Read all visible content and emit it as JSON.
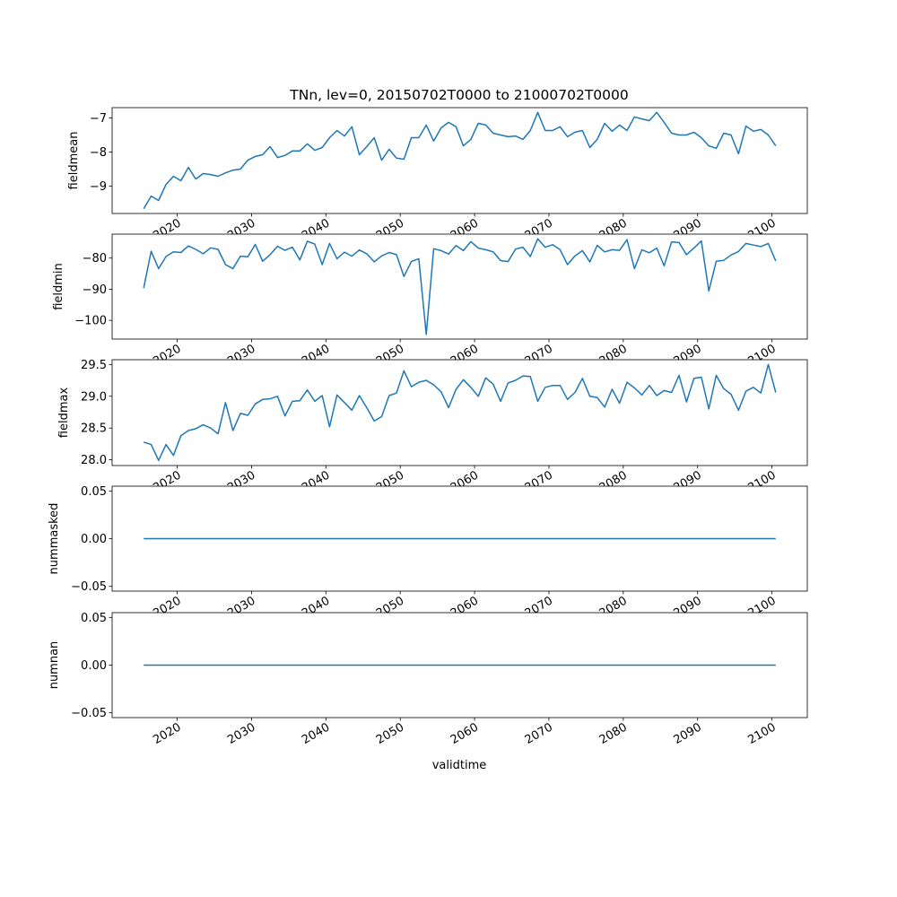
{
  "chart_data": {
    "type": "line",
    "title": "TNn, lev=0, 20150702T0000 to 21000702T0000",
    "xlabel": "validtime",
    "x_start": 2015.5,
    "x_step": 1,
    "xlim": [
      2011.25,
      2104.75
    ],
    "x_ticks": [
      2020,
      2030,
      2040,
      2050,
      2060,
      2070,
      2080,
      2090,
      2100
    ],
    "x_tick_labels": [
      "2020",
      "2030",
      "2040",
      "2050",
      "2060",
      "2070",
      "2080",
      "2090",
      "2100"
    ],
    "line_color": "#1f77b4",
    "grid": false,
    "panels": [
      {
        "ylabel": "fieldmean",
        "ylim": [
          -9.8,
          -6.7
        ],
        "y_ticks": [
          -9,
          -8,
          -7
        ],
        "y_tick_labels": [
          "−9",
          "−8",
          "−7"
        ],
        "values": [
          -9.66,
          -9.29,
          -9.42,
          -8.95,
          -8.71,
          -8.84,
          -8.45,
          -8.79,
          -8.63,
          -8.66,
          -8.71,
          -8.61,
          -8.53,
          -8.5,
          -8.24,
          -8.13,
          -8.08,
          -7.84,
          -8.16,
          -8.1,
          -7.97,
          -7.97,
          -7.76,
          -7.95,
          -7.87,
          -7.58,
          -7.37,
          -7.53,
          -7.26,
          -8.08,
          -7.84,
          -7.58,
          -8.24,
          -7.92,
          -8.18,
          -8.21,
          -7.58,
          -7.58,
          -7.21,
          -7.68,
          -7.29,
          -7.13,
          -7.26,
          -7.82,
          -7.63,
          -7.16,
          -7.21,
          -7.45,
          -7.5,
          -7.55,
          -7.53,
          -7.63,
          -7.37,
          -6.84,
          -7.37,
          -7.37,
          -7.26,
          -7.55,
          -7.42,
          -7.37,
          -7.87,
          -7.63,
          -7.16,
          -7.39,
          -7.21,
          -7.37,
          -6.97,
          -7.03,
          -7.08,
          -6.84,
          -7.13,
          -7.45,
          -7.5,
          -7.5,
          -7.42,
          -7.58,
          -7.82,
          -7.89,
          -7.45,
          -7.5,
          -8.05,
          -7.24,
          -7.39,
          -7.34,
          -7.5,
          -7.82
        ]
      },
      {
        "ylabel": "fieldmin",
        "ylim": [
          -106.0,
          -72.3
        ],
        "y_ticks": [
          -100,
          -90,
          -80
        ],
        "y_tick_labels": [
          "−100",
          "−90",
          "−80"
        ],
        "values": [
          -89.6,
          -77.8,
          -83.4,
          -79.5,
          -78.0,
          -78.2,
          -76.1,
          -77.2,
          -78.6,
          -76.7,
          -77.2,
          -82.1,
          -83.4,
          -79.4,
          -79.6,
          -75.6,
          -81.0,
          -78.9,
          -76.2,
          -77.5,
          -76.5,
          -80.6,
          -74.6,
          -75.5,
          -82.1,
          -75.3,
          -80.2,
          -78.1,
          -79.4,
          -77.4,
          -78.6,
          -81.2,
          -79.3,
          -78.2,
          -78.9,
          -85.9,
          -81.1,
          -80.2,
          -104.5,
          -77.0,
          -77.6,
          -78.7,
          -76.0,
          -77.6,
          -74.7,
          -76.8,
          -77.3,
          -78.0,
          -80.8,
          -81.1,
          -77.1,
          -76.5,
          -79.5,
          -73.8,
          -76.5,
          -75.7,
          -77.3,
          -82.1,
          -79.3,
          -77.6,
          -81.2,
          -75.9,
          -78.0,
          -77.3,
          -77.5,
          -74.1,
          -83.4,
          -77.3,
          -78.3,
          -76.8,
          -82.5,
          -74.8,
          -75.0,
          -78.9,
          -76.8,
          -74.5,
          -90.6,
          -81.0,
          -80.7,
          -79.0,
          -77.9,
          -75.3,
          -75.8,
          -76.3,
          -75.3,
          -80.9
        ]
      },
      {
        "ylabel": "fieldmax",
        "ylim": [
          27.91,
          29.575
        ],
        "y_ticks": [
          28.0,
          28.5,
          29.0,
          29.5
        ],
        "y_tick_labels": [
          "28.0",
          "28.5",
          "29.0",
          "29.5"
        ],
        "values": [
          28.28,
          28.24,
          27.99,
          28.24,
          28.07,
          28.38,
          28.46,
          28.49,
          28.55,
          28.5,
          28.41,
          28.9,
          28.46,
          28.73,
          28.7,
          28.88,
          28.95,
          28.96,
          29.0,
          28.69,
          28.92,
          28.93,
          29.1,
          28.92,
          29.01,
          28.52,
          29.02,
          28.9,
          28.78,
          29.01,
          28.82,
          28.61,
          28.68,
          29.01,
          29.05,
          29.4,
          29.15,
          29.22,
          29.25,
          29.18,
          29.07,
          28.82,
          29.11,
          29.26,
          29.14,
          29.0,
          29.29,
          29.19,
          28.92,
          29.21,
          29.25,
          29.32,
          29.31,
          28.92,
          29.14,
          29.17,
          29.17,
          28.95,
          29.06,
          29.28,
          29.0,
          28.98,
          28.83,
          29.11,
          28.89,
          29.22,
          29.13,
          29.02,
          29.17,
          29.01,
          29.09,
          29.06,
          29.33,
          28.91,
          29.28,
          29.3,
          28.8,
          29.33,
          29.12,
          29.03,
          28.78,
          29.08,
          29.14,
          29.05,
          29.5,
          29.06
        ]
      },
      {
        "ylabel": "nummasked",
        "ylim": [
          -0.055,
          0.055
        ],
        "y_ticks": [
          -0.05,
          0.0,
          0.05
        ],
        "y_tick_labels": [
          "−0.05",
          "0.00",
          "0.05"
        ],
        "values": [
          0,
          0,
          0,
          0,
          0,
          0,
          0,
          0,
          0,
          0,
          0,
          0,
          0,
          0,
          0,
          0,
          0,
          0,
          0,
          0,
          0,
          0,
          0,
          0,
          0,
          0,
          0,
          0,
          0,
          0,
          0,
          0,
          0,
          0,
          0,
          0,
          0,
          0,
          0,
          0,
          0,
          0,
          0,
          0,
          0,
          0,
          0,
          0,
          0,
          0,
          0,
          0,
          0,
          0,
          0,
          0,
          0,
          0,
          0,
          0,
          0,
          0,
          0,
          0,
          0,
          0,
          0,
          0,
          0,
          0,
          0,
          0,
          0,
          0,
          0,
          0,
          0,
          0,
          0,
          0,
          0,
          0,
          0,
          0,
          0,
          0
        ]
      },
      {
        "ylabel": "numnan",
        "ylim": [
          -0.055,
          0.055
        ],
        "y_ticks": [
          -0.05,
          0.0,
          0.05
        ],
        "y_tick_labels": [
          "−0.05",
          "0.00",
          "0.05"
        ],
        "values": [
          0,
          0,
          0,
          0,
          0,
          0,
          0,
          0,
          0,
          0,
          0,
          0,
          0,
          0,
          0,
          0,
          0,
          0,
          0,
          0,
          0,
          0,
          0,
          0,
          0,
          0,
          0,
          0,
          0,
          0,
          0,
          0,
          0,
          0,
          0,
          0,
          0,
          0,
          0,
          0,
          0,
          0,
          0,
          0,
          0,
          0,
          0,
          0,
          0,
          0,
          0,
          0,
          0,
          0,
          0,
          0,
          0,
          0,
          0,
          0,
          0,
          0,
          0,
          0,
          0,
          0,
          0,
          0,
          0,
          0,
          0,
          0,
          0,
          0,
          0,
          0,
          0,
          0,
          0,
          0,
          0,
          0,
          0,
          0,
          0,
          0
        ]
      }
    ]
  }
}
